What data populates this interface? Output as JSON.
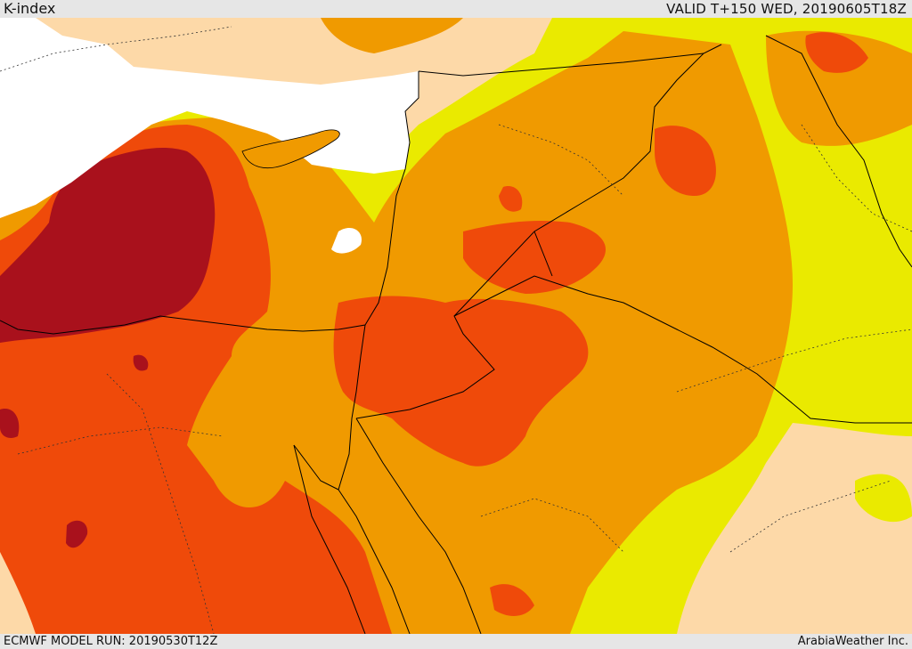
{
  "header": {
    "title": "K-index",
    "valid": "VALID T+150 WED, 20190605T18Z"
  },
  "footer": {
    "model_run": "ECMWF MODEL RUN: 20190530T12Z",
    "credit": "ArabiaWeather Inc."
  },
  "map": {
    "field": "K-index",
    "colors": {
      "lowest": "#fdd9a8",
      "low": "#eaea00",
      "moderate": "#f09a00",
      "high": "#ef4a0a",
      "highest": "#a9111c",
      "sea": "#ffffff",
      "borders": "#000000"
    }
  }
}
